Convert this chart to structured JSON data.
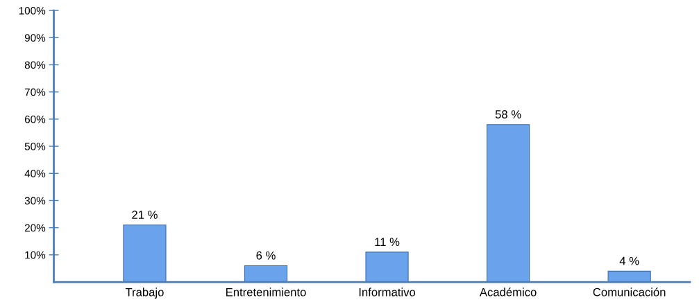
{
  "chart_data": {
    "type": "bar",
    "categories": [
      "Trabajo",
      "Entretenimiento",
      "Informativo",
      "Académico",
      "Comunicación"
    ],
    "values": [
      21,
      6,
      11,
      58,
      4
    ],
    "value_labels": [
      "21 %",
      "6 %",
      "11 %",
      "58 %",
      "4 %"
    ],
    "color": "#6aa2ec",
    "ylim": [
      0,
      100
    ],
    "yticks": [
      {
        "value": 10,
        "label": "10%"
      },
      {
        "value": 20,
        "label": "20%"
      },
      {
        "value": 30,
        "label": "30%"
      },
      {
        "value": 40,
        "label": "40%"
      },
      {
        "value": 50,
        "label": "50%"
      },
      {
        "value": 60,
        "label": "60%"
      },
      {
        "value": 70,
        "label": "70%"
      },
      {
        "value": 80,
        "label": "80%"
      },
      {
        "value": 90,
        "label": "90%"
      },
      {
        "value": 100,
        "label": "100%"
      }
    ],
    "grid": false,
    "legend": false
  }
}
